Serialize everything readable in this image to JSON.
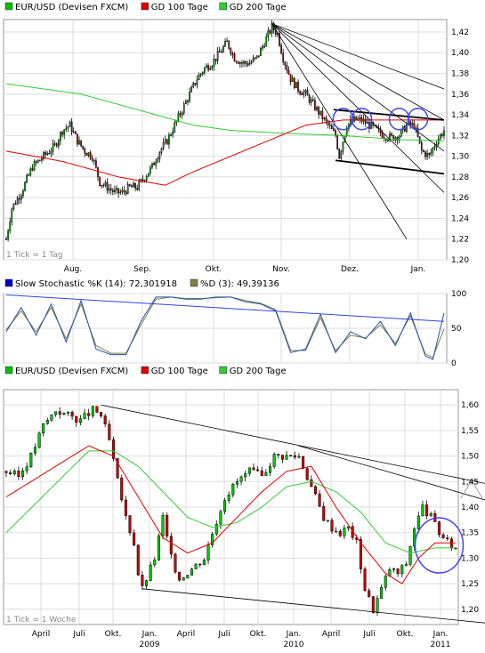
{
  "chart_data": [
    {
      "type": "candlestick",
      "legend": [
        {
          "label": "EUR/USD (Devisen FXCM)",
          "color": "#00c000"
        },
        {
          "label": "GD 100 Tage",
          "color": "#e00000"
        },
        {
          "label": "GD 200 Tage",
          "color": "#33cc33"
        }
      ],
      "footnote": "1 Tick = 1 Tag",
      "x_ticks": [
        "Aug.",
        "Sep.",
        "Okt.",
        "Nov.",
        "Dez.",
        "Jan."
      ],
      "y_ticks": [
        "1,20",
        "1,22",
        "1,24",
        "1,26",
        "1,28",
        "1,30",
        "1,32",
        "1,34",
        "1,36",
        "1,38",
        "1,40",
        "1,42"
      ],
      "ylim": [
        1.2,
        1.432
      ],
      "price_anchors": [
        [
          0,
          1.22
        ],
        [
          3,
          1.25
        ],
        [
          8,
          1.265
        ],
        [
          14,
          1.29
        ],
        [
          20,
          1.3
        ],
        [
          26,
          1.31
        ],
        [
          30,
          1.325
        ],
        [
          34,
          1.33
        ],
        [
          38,
          1.315
        ],
        [
          42,
          1.305
        ],
        [
          46,
          1.3
        ],
        [
          50,
          1.275
        ],
        [
          54,
          1.27
        ],
        [
          58,
          1.265
        ],
        [
          62,
          1.265
        ],
        [
          66,
          1.27
        ],
        [
          70,
          1.27
        ],
        [
          74,
          1.28
        ],
        [
          78,
          1.29
        ],
        [
          82,
          1.305
        ],
        [
          86,
          1.315
        ],
        [
          90,
          1.33
        ],
        [
          94,
          1.345
        ],
        [
          98,
          1.36
        ],
        [
          102,
          1.375
        ],
        [
          106,
          1.385
        ],
        [
          110,
          1.39
        ],
        [
          114,
          1.4
        ],
        [
          118,
          1.41
        ],
        [
          122,
          1.395
        ],
        [
          126,
          1.39
        ],
        [
          130,
          1.39
        ],
        [
          134,
          1.395
        ],
        [
          138,
          1.41
        ],
        [
          142,
          1.425
        ],
        [
          145,
          1.418
        ],
        [
          148,
          1.395
        ],
        [
          152,
          1.375
        ],
        [
          156,
          1.365
        ],
        [
          160,
          1.36
        ],
        [
          164,
          1.35
        ],
        [
          168,
          1.34
        ],
        [
          172,
          1.33
        ],
        [
          176,
          1.32
        ],
        [
          178,
          1.3
        ],
        [
          182,
          1.33
        ],
        [
          186,
          1.335
        ],
        [
          190,
          1.335
        ],
        [
          194,
          1.33
        ],
        [
          198,
          1.325
        ],
        [
          202,
          1.32
        ],
        [
          206,
          1.318
        ],
        [
          210,
          1.32
        ],
        [
          214,
          1.33
        ],
        [
          218,
          1.33
        ],
        [
          222,
          1.305
        ],
        [
          226,
          1.3
        ],
        [
          230,
          1.315
        ],
        [
          234,
          1.325
        ]
      ],
      "ma100_anchors": [
        [
          0,
          1.305
        ],
        [
          30,
          1.295
        ],
        [
          60,
          1.28
        ],
        [
          85,
          1.272
        ],
        [
          100,
          1.285
        ],
        [
          120,
          1.3
        ],
        [
          140,
          1.315
        ],
        [
          160,
          1.33
        ],
        [
          180,
          1.335
        ],
        [
          200,
          1.335
        ],
        [
          234,
          1.335
        ]
      ],
      "ma200_anchors": [
        [
          0,
          1.37
        ],
        [
          40,
          1.36
        ],
        [
          80,
          1.34
        ],
        [
          100,
          1.33
        ],
        [
          120,
          1.325
        ],
        [
          150,
          1.322
        ],
        [
          180,
          1.32
        ],
        [
          210,
          1.316
        ],
        [
          234,
          1.315
        ]
      ],
      "trend_lines": [
        [
          [
            142,
            1.428
          ],
          [
            234,
            1.365
          ]
        ],
        [
          [
            142,
            1.428
          ],
          [
            234,
            1.335
          ]
        ],
        [
          [
            142,
            1.428
          ],
          [
            234,
            1.305
          ]
        ],
        [
          [
            142,
            1.428
          ],
          [
            234,
            1.265
          ]
        ],
        [
          [
            142,
            1.428
          ],
          [
            214,
            1.22
          ]
        ],
        [
          [
            175,
            1.345
          ],
          [
            234,
            1.335
          ]
        ],
        [
          [
            176,
            1.296
          ],
          [
            234,
            1.283
          ]
        ]
      ],
      "circles": [
        [
          180,
          1.336
        ],
        [
          190,
          1.336
        ],
        [
          210,
          1.336
        ],
        [
          220,
          1.336
        ]
      ]
    },
    {
      "type": "line",
      "label_k": "Slow Stochastic %K (14): 72,301918",
      "label_d": "%D (3): 49,39136",
      "label_colors": {
        "k": "#0000cc",
        "d": "#808040"
      },
      "y_ticks": [
        "0",
        "50",
        "100"
      ],
      "ylim": [
        0,
        100
      ],
      "k_anchors": [
        [
          0,
          45
        ],
        [
          8,
          80
        ],
        [
          16,
          40
        ],
        [
          24,
          85
        ],
        [
          32,
          30
        ],
        [
          40,
          90
        ],
        [
          48,
          20
        ],
        [
          56,
          12
        ],
        [
          64,
          12
        ],
        [
          72,
          60
        ],
        [
          80,
          95
        ],
        [
          88,
          95
        ],
        [
          96,
          92
        ],
        [
          104,
          92
        ],
        [
          112,
          95
        ],
        [
          120,
          95
        ],
        [
          128,
          88
        ],
        [
          136,
          85
        ],
        [
          144,
          75
        ],
        [
          152,
          15
        ],
        [
          160,
          20
        ],
        [
          168,
          70
        ],
        [
          176,
          15
        ],
        [
          184,
          45
        ],
        [
          192,
          35
        ],
        [
          200,
          60
        ],
        [
          208,
          25
        ],
        [
          216,
          72
        ],
        [
          224,
          10
        ],
        [
          228,
          5
        ],
        [
          234,
          72
        ]
      ],
      "d_anchors": [
        [
          0,
          48
        ],
        [
          8,
          75
        ],
        [
          16,
          45
        ],
        [
          24,
          80
        ],
        [
          32,
          35
        ],
        [
          40,
          85
        ],
        [
          48,
          25
        ],
        [
          56,
          14
        ],
        [
          64,
          14
        ],
        [
          72,
          55
        ],
        [
          80,
          92
        ],
        [
          88,
          95
        ],
        [
          96,
          93
        ],
        [
          104,
          93
        ],
        [
          112,
          94
        ],
        [
          120,
          95
        ],
        [
          128,
          90
        ],
        [
          136,
          86
        ],
        [
          144,
          77
        ],
        [
          152,
          18
        ],
        [
          160,
          18
        ],
        [
          168,
          65
        ],
        [
          176,
          18
        ],
        [
          184,
          40
        ],
        [
          192,
          36
        ],
        [
          200,
          55
        ],
        [
          208,
          28
        ],
        [
          216,
          68
        ],
        [
          224,
          13
        ],
        [
          228,
          8
        ],
        [
          234,
          49
        ]
      ],
      "trend_line": [
        [
          0,
          98
        ],
        [
          234,
          60
        ]
      ]
    },
    {
      "type": "candlestick",
      "legend": [
        {
          "label": "EUR/USD (Devisen FXCM)",
          "color": "#00c000"
        },
        {
          "label": "GD 100 Tage",
          "color": "#e00000"
        },
        {
          "label": "GD 200 Tage",
          "color": "#33cc33"
        }
      ],
      "footnote": "1 Tick = 1 Woche",
      "x_ticks": [
        "April",
        "Juli",
        "Okt.",
        "Jan.",
        "April",
        "Juli",
        "Okt.",
        "Jan.",
        "April",
        "Juli",
        "Okt.",
        "Jan."
      ],
      "x_years": [
        "2009",
        "2010",
        "2011"
      ],
      "y_ticks": [
        "1,20",
        "1,25",
        "1,30",
        "1,35",
        "1,40",
        "1,45",
        "1,50",
        "1,55",
        "1,60"
      ],
      "ylim": [
        1.17,
        1.63
      ],
      "price_anchors": [
        [
          0,
          1.47
        ],
        [
          3,
          1.46
        ],
        [
          6,
          1.5
        ],
        [
          9,
          1.56
        ],
        [
          12,
          1.59
        ],
        [
          15,
          1.58
        ],
        [
          18,
          1.57
        ],
        [
          21,
          1.59
        ],
        [
          23,
          1.58
        ],
        [
          25,
          1.53
        ],
        [
          27,
          1.45
        ],
        [
          29,
          1.38
        ],
        [
          31,
          1.33
        ],
        [
          32,
          1.27
        ],
        [
          33,
          1.24
        ],
        [
          36,
          1.3
        ],
        [
          38,
          1.38
        ],
        [
          40,
          1.3
        ],
        [
          42,
          1.26
        ],
        [
          45,
          1.28
        ],
        [
          48,
          1.3
        ],
        [
          50,
          1.35
        ],
        [
          53,
          1.42
        ],
        [
          56,
          1.45
        ],
        [
          59,
          1.47
        ],
        [
          62,
          1.46
        ],
        [
          65,
          1.5
        ],
        [
          68,
          1.5
        ],
        [
          71,
          1.5
        ],
        [
          73,
          1.46
        ],
        [
          75,
          1.42
        ],
        [
          77,
          1.38
        ],
        [
          79,
          1.36
        ],
        [
          81,
          1.35
        ],
        [
          83,
          1.36
        ],
        [
          85,
          1.33
        ],
        [
          87,
          1.24
        ],
        [
          89,
          1.2
        ],
        [
          91,
          1.24
        ],
        [
          93,
          1.28
        ],
        [
          95,
          1.27
        ],
        [
          97,
          1.29
        ],
        [
          99,
          1.36
        ],
        [
          101,
          1.4
        ],
        [
          103,
          1.38
        ],
        [
          105,
          1.35
        ],
        [
          107,
          1.33
        ],
        [
          109,
          1.32
        ]
      ],
      "ma100_anchors": [
        [
          0,
          1.42
        ],
        [
          10,
          1.47
        ],
        [
          20,
          1.52
        ],
        [
          26,
          1.5
        ],
        [
          32,
          1.42
        ],
        [
          38,
          1.34
        ],
        [
          44,
          1.31
        ],
        [
          50,
          1.33
        ],
        [
          56,
          1.38
        ],
        [
          62,
          1.43
        ],
        [
          68,
          1.47
        ],
        [
          74,
          1.48
        ],
        [
          80,
          1.4
        ],
        [
          86,
          1.33
        ],
        [
          92,
          1.27
        ],
        [
          96,
          1.25
        ],
        [
          100,
          1.3
        ],
        [
          104,
          1.33
        ],
        [
          109,
          1.33
        ]
      ],
      "ma200_anchors": [
        [
          0,
          1.35
        ],
        [
          10,
          1.43
        ],
        [
          20,
          1.51
        ],
        [
          26,
          1.51
        ],
        [
          32,
          1.48
        ],
        [
          38,
          1.43
        ],
        [
          44,
          1.38
        ],
        [
          50,
          1.36
        ],
        [
          56,
          1.37
        ],
        [
          62,
          1.4
        ],
        [
          68,
          1.44
        ],
        [
          74,
          1.45
        ],
        [
          80,
          1.43
        ],
        [
          86,
          1.39
        ],
        [
          92,
          1.33
        ],
        [
          98,
          1.31
        ],
        [
          104,
          1.32
        ],
        [
          109,
          1.32
        ]
      ],
      "trend_lines": [
        [
          [
            23,
            1.6
          ],
          [
            120,
            1.44
          ]
        ],
        [
          [
            71,
            1.52
          ],
          [
            120,
            1.405
          ]
        ],
        [
          [
            33,
            1.24
          ],
          [
            120,
            1.17
          ]
        ],
        [
          [
            118,
            1.39
          ],
          [
            120,
            1.4
          ]
        ]
      ],
      "circles": [
        [
          105,
          1.325
        ]
      ]
    }
  ]
}
